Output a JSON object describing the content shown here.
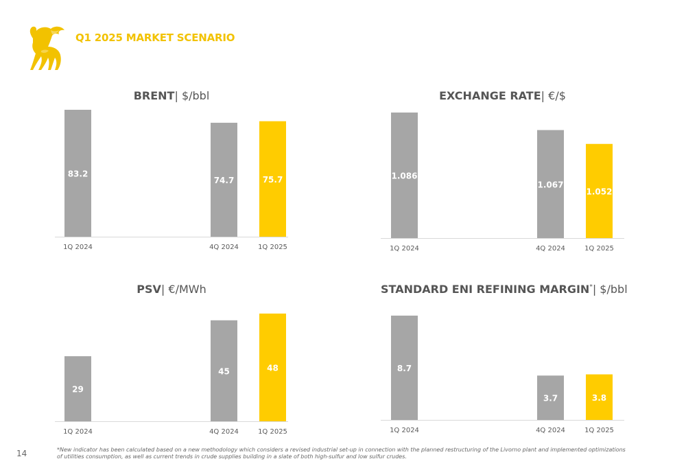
{
  "header": {
    "title": "Q1 2025 MARKET SCENARIO"
  },
  "page_number": "14",
  "footnote": "*New indicator has been calculated based on a new methodology which considers a revised industrial set-up in connection with the planned restructuring of the Livorno plant and implemented optimizations of utilities consumption, as well as current trends in crude supplies building in a slate of both high-sulfur and low sulfur crudes.",
  "colors": {
    "grey": "#a6a6a6",
    "yellow": "#ffcc00",
    "title_yellow": "#f2c200"
  },
  "chart_data": [
    {
      "type": "bar",
      "title_bold": "BRENT",
      "title_sup": "",
      "title_rest": "| $/bbl",
      "categories": [
        "1Q 2024",
        "4Q 2024",
        "1Q 2025"
      ],
      "values": [
        83.2,
        74.7,
        75.7
      ],
      "labels": [
        "83.2",
        "74.7",
        "75.7"
      ],
      "highlight": [
        false,
        false,
        true
      ]
    },
    {
      "type": "bar",
      "title_bold": "EXCHANGE RATE",
      "title_sup": "",
      "title_rest": "| €/$",
      "categories": [
        "1Q 2024",
        "4Q 2024",
        "1Q 2025"
      ],
      "values": [
        1.086,
        1.067,
        1.052
      ],
      "labels": [
        "1.086",
        "1.067",
        "1.052"
      ],
      "highlight": [
        false,
        false,
        true
      ]
    },
    {
      "type": "bar",
      "title_bold": "PSV",
      "title_sup": "",
      "title_rest": "| €/MWh",
      "categories": [
        "1Q 2024",
        "4Q 2024",
        "1Q 2025"
      ],
      "values": [
        29,
        45,
        48
      ],
      "labels": [
        "29",
        "45",
        "48"
      ],
      "highlight": [
        false,
        false,
        true
      ]
    },
    {
      "type": "bar",
      "title_bold": "STANDARD ENI REFINING MARGIN",
      "title_sup": "*",
      "title_rest": "| $/bbl",
      "categories": [
        "1Q 2024",
        "4Q 2024",
        "1Q 2025"
      ],
      "values": [
        8.7,
        3.7,
        3.8
      ],
      "labels": [
        "8.7",
        "3.7",
        "3.8"
      ],
      "highlight": [
        false,
        false,
        true
      ]
    }
  ]
}
